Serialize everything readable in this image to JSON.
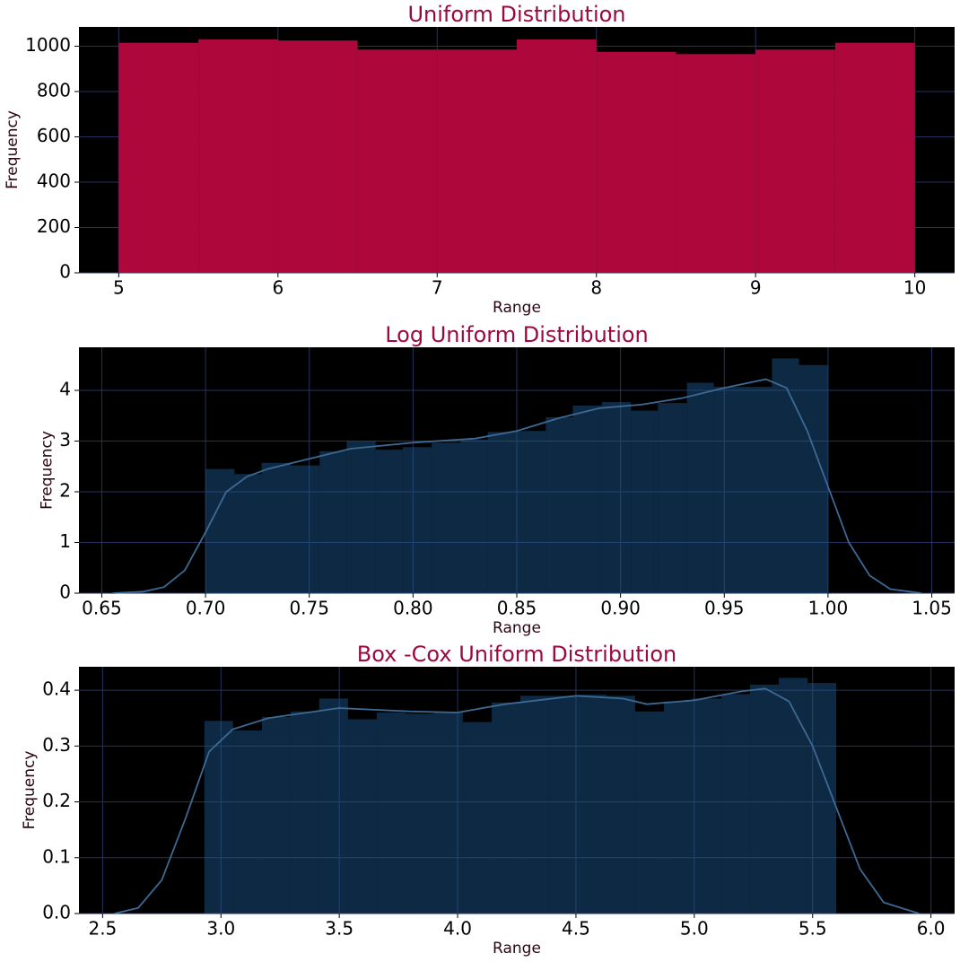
{
  "chart_data": [
    {
      "type": "histogram",
      "title": "Uniform Distribution",
      "xlabel": "Range",
      "ylabel": "Frequency",
      "bins": [
        5,
        5.5,
        6,
        6.5,
        7,
        7.5,
        8,
        8.5,
        9,
        9.5,
        10
      ],
      "values": [
        1015,
        1030,
        1025,
        985,
        985,
        1030,
        975,
        965,
        985,
        1015
      ],
      "color": "#ad073b",
      "alpha": 1,
      "xlim": [
        4.75,
        10.25
      ],
      "xticks": [
        5,
        6,
        7,
        8,
        9,
        10
      ],
      "ylim": [
        0,
        1085
      ],
      "yticks": [
        0,
        200,
        400,
        600,
        800,
        1000
      ],
      "grid": true
    },
    {
      "type": "histogram",
      "title": "Log Uniform Distribution",
      "xlabel": "Range",
      "ylabel": "Frequency",
      "bins": [
        0.7,
        0.714,
        0.727,
        0.741,
        0.755,
        0.768,
        0.782,
        0.795,
        0.809,
        0.823,
        0.836,
        0.85,
        0.864,
        0.877,
        0.891,
        0.905,
        0.918,
        0.932,
        0.945,
        0.959,
        0.973,
        0.986,
        1.0
      ],
      "values": [
        2.45,
        2.35,
        2.57,
        2.52,
        2.8,
        3.0,
        2.83,
        2.88,
        2.97,
        3.03,
        3.18,
        3.2,
        3.47,
        3.7,
        3.77,
        3.6,
        3.75,
        4.15,
        4.07,
        4.07,
        4.63,
        4.5
      ],
      "color": "#1f5c94",
      "alpha": 0.45,
      "line": {
        "x": [
          0.655,
          0.67,
          0.68,
          0.69,
          0.7,
          0.71,
          0.72,
          0.73,
          0.75,
          0.77,
          0.8,
          0.83,
          0.85,
          0.87,
          0.89,
          0.91,
          0.93,
          0.95,
          0.97,
          0.98,
          0.99,
          1.0,
          1.01,
          1.02,
          1.03,
          1.045
        ],
        "values": [
          0,
          0.03,
          0.12,
          0.45,
          1.2,
          2.0,
          2.3,
          2.45,
          2.65,
          2.85,
          2.97,
          3.05,
          3.2,
          3.45,
          3.65,
          3.72,
          3.85,
          4.05,
          4.22,
          4.05,
          3.2,
          2.1,
          1.0,
          0.35,
          0.08,
          0
        ],
        "color": "#3d6a94"
      },
      "xlim": [
        0.639,
        1.061
      ],
      "xticks": [
        0.65,
        {
          "value": 0.7,
          "label": "0.70"
        },
        0.75,
        {
          "value": 0.8,
          "label": "0.80"
        },
        0.85,
        {
          "value": 0.9,
          "label": "0.90"
        },
        0.95,
        {
          "value": 1.0,
          "label": "1.00"
        },
        1.05
      ],
      "ylim": [
        0,
        4.85
      ],
      "yticks": [
        0,
        1,
        2,
        3,
        4
      ],
      "grid": true
    },
    {
      "type": "histogram",
      "title": "Box -Cox Uniform Distribution",
      "xlabel": "Range",
      "ylabel": "Frequency",
      "bins": [
        2.93,
        3.051,
        3.173,
        3.294,
        3.415,
        3.537,
        3.658,
        3.78,
        3.901,
        4.022,
        4.144,
        4.265,
        4.386,
        4.508,
        4.629,
        4.75,
        4.872,
        4.993,
        5.115,
        5.236,
        5.357,
        5.479,
        5.6
      ],
      "values": [
        0.345,
        0.328,
        0.352,
        0.362,
        0.385,
        0.348,
        0.36,
        0.358,
        0.36,
        0.343,
        0.378,
        0.39,
        0.39,
        0.392,
        0.39,
        0.362,
        0.38,
        0.385,
        0.393,
        0.41,
        0.422,
        0.413
      ],
      "color": "#1f5c94",
      "alpha": 0.45,
      "line": {
        "x": [
          2.55,
          2.65,
          2.75,
          2.85,
          2.95,
          3.05,
          3.2,
          3.5,
          3.8,
          4.0,
          4.2,
          4.5,
          4.7,
          4.8,
          5.0,
          5.2,
          5.3,
          5.4,
          5.5,
          5.6,
          5.7,
          5.8,
          5.95
        ],
        "values": [
          0,
          0.01,
          0.06,
          0.17,
          0.29,
          0.33,
          0.35,
          0.368,
          0.362,
          0.36,
          0.375,
          0.39,
          0.385,
          0.375,
          0.382,
          0.398,
          0.403,
          0.38,
          0.3,
          0.19,
          0.08,
          0.02,
          0
        ],
        "color": "#3d6a94"
      },
      "xlim": [
        2.4,
        6.1
      ],
      "xticks": [
        2.5,
        {
          "value": 3,
          "label": "3.0"
        },
        3.5,
        {
          "value": 4,
          "label": "4.0"
        },
        4.5,
        {
          "value": 5,
          "label": "5.0"
        },
        5.5,
        {
          "value": 6,
          "label": "6.0"
        }
      ],
      "ylim": [
        0,
        0.442
      ],
      "yticks": [
        {
          "value": 0,
          "label": "0.0"
        },
        0.1,
        0.2,
        0.3,
        0.4
      ],
      "grid": true
    }
  ]
}
